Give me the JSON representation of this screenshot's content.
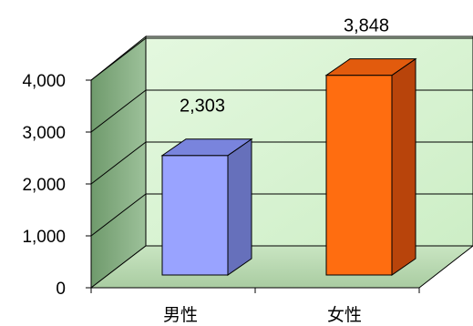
{
  "chart_data": {
    "type": "bar",
    "categories": [
      "男性",
      "女性"
    ],
    "values": [
      2303,
      3848
    ],
    "value_labels": [
      "2,303",
      "3,848"
    ],
    "y_ticks": [
      0,
      1000,
      2000,
      3000,
      4000
    ],
    "y_tick_labels": [
      "0",
      "1,000",
      "2,000",
      "3,000",
      "4,000"
    ],
    "ylim": [
      0,
      4000
    ],
    "title": "",
    "xlabel": "",
    "ylabel": "",
    "grid": true,
    "legend": "none",
    "colors": {
      "bars": [
        "#99a3ff",
        "#ff6d10"
      ],
      "bar_sides": [
        "#6670bb",
        "#b8440b"
      ],
      "bar_tops": [
        "#7984dd",
        "#e25b0d"
      ],
      "back_wall": "#ddf7d6",
      "side_wall": "#89ad85",
      "floor": "#b8d8b0",
      "gridlines": "#000000"
    }
  }
}
